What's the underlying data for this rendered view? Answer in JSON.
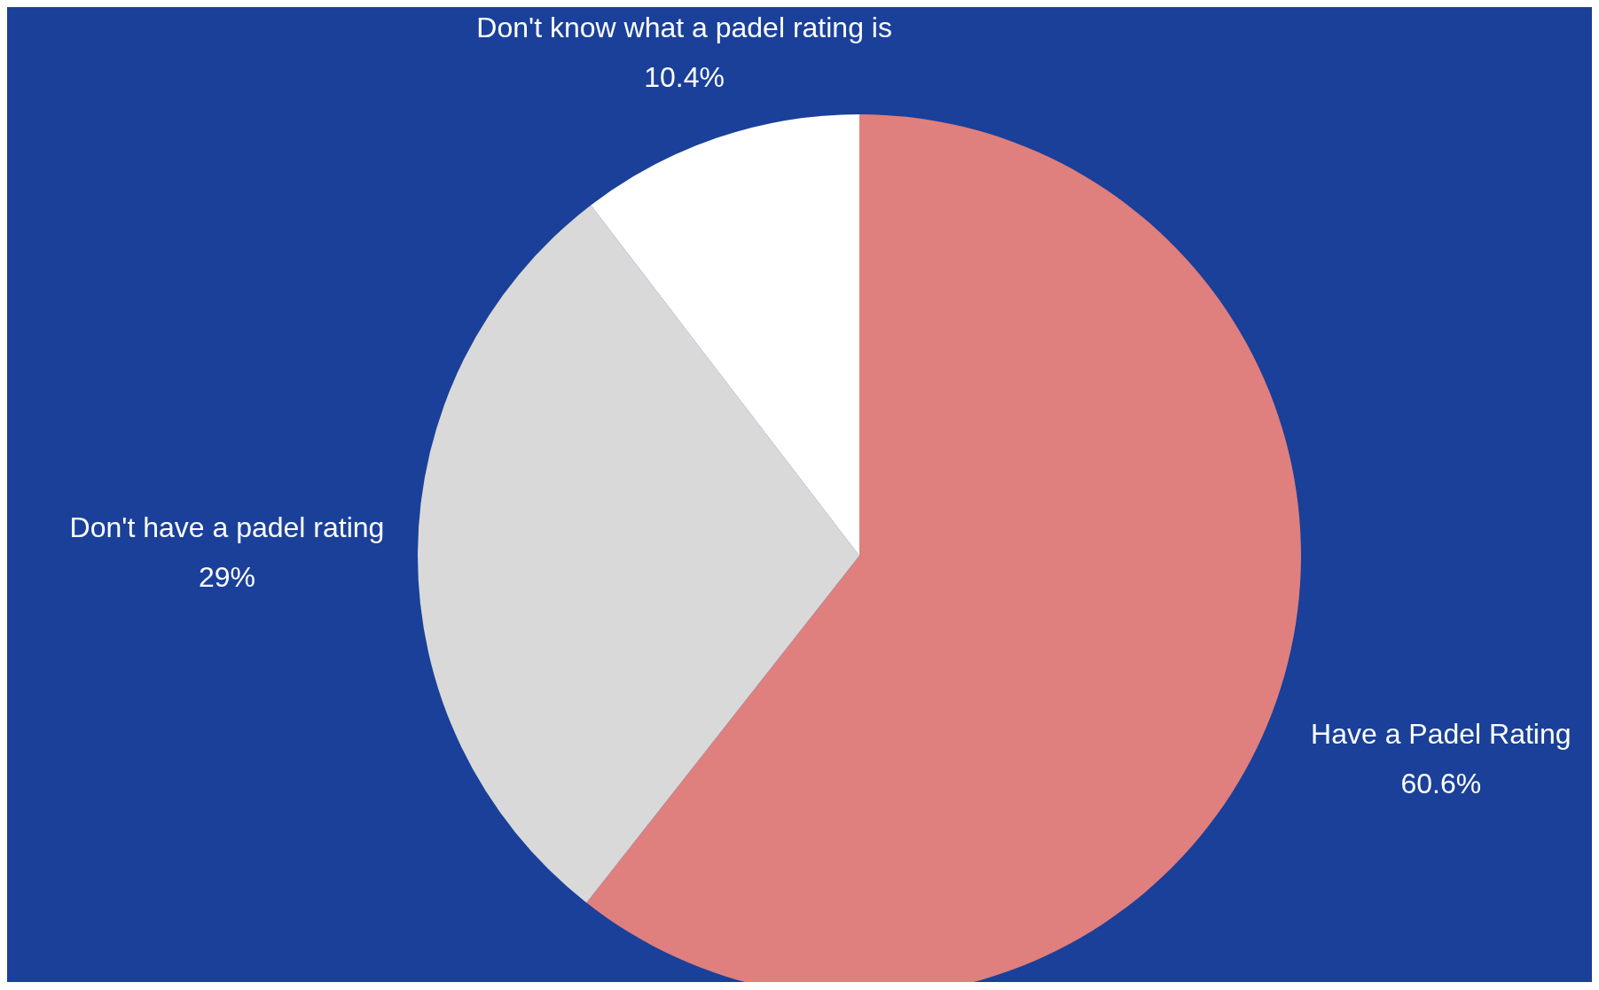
{
  "chart_data": {
    "type": "pie",
    "categories": [
      "Have a Padel Rating",
      "Don't have a padel rating",
      "Don't know what a padel rating is"
    ],
    "values": [
      60.6,
      29,
      10.4
    ],
    "value_labels": [
      "60.6%",
      "29%",
      "10.4%"
    ],
    "colors": [
      "#df7f7e",
      "#d9d9d9",
      "#ffffff"
    ],
    "legend": false
  }
}
